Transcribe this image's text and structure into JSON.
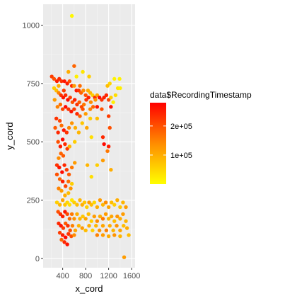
{
  "chart_data": {
    "type": "scatter",
    "title": "",
    "xlabel": "x_cord",
    "ylabel": "y_cord",
    "xlim": [
      60,
      1660
    ],
    "ylim": [
      -40,
      1090
    ],
    "x_ticks": [
      400,
      800,
      1200,
      1600
    ],
    "x_tick_labels": [
      "400",
      "800",
      "1200",
      "1600"
    ],
    "y_ticks": [
      0,
      250,
      500,
      750,
      1000
    ],
    "y_tick_labels": [
      "0",
      "250",
      "500",
      "750",
      "1000"
    ],
    "grid": true,
    "panel_background": "#ebebeb",
    "legend": {
      "title": "data$RecordingTimestamp",
      "position": "right",
      "type": "colorbar",
      "range": [
        0,
        280000
      ],
      "breaks": [
        100000,
        200000
      ],
      "break_labels": [
        "1e+05",
        "2e+05"
      ],
      "low_color": "#ffff00",
      "mid_color": "#ff8c00",
      "high_color": "#ff0000"
    },
    "points_xyc": [
      [
        560,
        1040,
        10000
      ],
      [
        1470,
        5,
        120000
      ],
      [
        210,
        780,
        220000
      ],
      [
        250,
        770,
        200000
      ],
      [
        300,
        760,
        250000
      ],
      [
        340,
        770,
        240000
      ],
      [
        380,
        760,
        230000
      ],
      [
        430,
        760,
        260000
      ],
      [
        480,
        750,
        250000
      ],
      [
        520,
        760,
        200000
      ],
      [
        560,
        740,
        240000
      ],
      [
        600,
        740,
        120000
      ],
      [
        640,
        720,
        260000
      ],
      [
        680,
        720,
        230000
      ],
      [
        720,
        710,
        180000
      ],
      [
        760,
        720,
        140000
      ],
      [
        800,
        700,
        200000
      ],
      [
        840,
        720,
        100000
      ],
      [
        880,
        710,
        90000
      ],
      [
        920,
        700,
        60000
      ],
      [
        960,
        690,
        240000
      ],
      [
        1000,
        700,
        110000
      ],
      [
        1040,
        690,
        270000
      ],
      [
        1080,
        680,
        230000
      ],
      [
        1120,
        690,
        250000
      ],
      [
        1160,
        700,
        240000
      ],
      [
        1200,
        680,
        210000
      ],
      [
        1240,
        690,
        60000
      ],
      [
        1280,
        670,
        20000
      ],
      [
        1320,
        700,
        40000
      ],
      [
        1360,
        730,
        30000
      ],
      [
        1400,
        730,
        20000
      ],
      [
        1300,
        770,
        15000
      ],
      [
        1390,
        770,
        15000
      ],
      [
        1220,
        750,
        50000
      ],
      [
        1180,
        740,
        80000
      ],
      [
        250,
        730,
        60000
      ],
      [
        290,
        720,
        80000
      ],
      [
        330,
        710,
        150000
      ],
      [
        370,
        700,
        230000
      ],
      [
        410,
        690,
        260000
      ],
      [
        450,
        700,
        240000
      ],
      [
        490,
        680,
        270000
      ],
      [
        530,
        690,
        220000
      ],
      [
        570,
        670,
        200000
      ],
      [
        610,
        680,
        250000
      ],
      [
        650,
        660,
        230000
      ],
      [
        690,
        670,
        190000
      ],
      [
        730,
        650,
        210000
      ],
      [
        770,
        660,
        160000
      ],
      [
        810,
        680,
        230000
      ],
      [
        850,
        690,
        250000
      ],
      [
        890,
        670,
        140000
      ],
      [
        930,
        650,
        180000
      ],
      [
        970,
        680,
        130000
      ],
      [
        260,
        680,
        120000
      ],
      [
        310,
        650,
        150000
      ],
      [
        360,
        660,
        170000
      ],
      [
        400,
        640,
        210000
      ],
      [
        450,
        650,
        270000
      ],
      [
        500,
        640,
        230000
      ],
      [
        550,
        630,
        260000
      ],
      [
        600,
        640,
        220000
      ],
      [
        650,
        620,
        240000
      ],
      [
        700,
        610,
        180000
      ],
      [
        750,
        640,
        200000
      ],
      [
        800,
        620,
        120000
      ],
      [
        880,
        640,
        150000
      ],
      [
        500,
        800,
        100000
      ],
      [
        640,
        780,
        20000
      ],
      [
        750,
        800,
        30000
      ],
      [
        860,
        780,
        60000
      ],
      [
        600,
        825,
        180000
      ],
      [
        330,
        740,
        100000
      ],
      [
        420,
        720,
        220000
      ],
      [
        700,
        740,
        170000
      ],
      [
        1000,
        650,
        260000
      ],
      [
        1080,
        640,
        200000
      ],
      [
        1200,
        610,
        220000
      ],
      [
        1240,
        650,
        260000
      ],
      [
        290,
        600,
        230000
      ],
      [
        350,
        590,
        210000
      ],
      [
        270,
        560,
        190000
      ],
      [
        320,
        540,
        240000
      ],
      [
        380,
        570,
        170000
      ],
      [
        420,
        550,
        260000
      ],
      [
        470,
        540,
        230000
      ],
      [
        510,
        560,
        150000
      ],
      [
        560,
        580,
        130000
      ],
      [
        620,
        560,
        100000
      ],
      [
        680,
        540,
        90000
      ],
      [
        740,
        580,
        70000
      ],
      [
        320,
        500,
        200000
      ],
      [
        360,
        480,
        250000
      ],
      [
        400,
        510,
        270000
      ],
      [
        440,
        490,
        240000
      ],
      [
        480,
        470,
        220000
      ],
      [
        370,
        450,
        180000
      ],
      [
        330,
        430,
        140000
      ],
      [
        410,
        440,
        190000
      ],
      [
        520,
        480,
        90000
      ],
      [
        610,
        500,
        60000
      ],
      [
        820,
        560,
        110000
      ],
      [
        880,
        600,
        60000
      ],
      [
        1000,
        600,
        80000
      ],
      [
        1100,
        520,
        240000
      ],
      [
        1120,
        490,
        270000
      ],
      [
        1200,
        480,
        250000
      ],
      [
        1220,
        560,
        200000
      ],
      [
        900,
        520,
        40000
      ],
      [
        300,
        400,
        230000
      ],
      [
        340,
        390,
        260000
      ],
      [
        390,
        370,
        270000
      ],
      [
        430,
        400,
        240000
      ],
      [
        470,
        380,
        220000
      ],
      [
        510,
        360,
        190000
      ],
      [
        560,
        390,
        160000
      ],
      [
        610,
        410,
        120000
      ],
      [
        300,
        360,
        200000
      ],
      [
        350,
        340,
        180000
      ],
      [
        400,
        330,
        250000
      ],
      [
        450,
        310,
        210000
      ],
      [
        500,
        330,
        170000
      ],
      [
        540,
        300,
        130000
      ],
      [
        330,
        300,
        150000
      ],
      [
        380,
        290,
        120000
      ],
      [
        440,
        270,
        100000
      ],
      [
        500,
        280,
        80000
      ],
      [
        560,
        320,
        60000
      ],
      [
        830,
        400,
        90000
      ],
      [
        900,
        350,
        40000
      ],
      [
        1100,
        420,
        120000
      ],
      [
        1180,
        460,
        160000
      ],
      [
        1240,
        380,
        100000
      ],
      [
        1000,
        400,
        60000
      ],
      [
        300,
        240,
        60000
      ],
      [
        350,
        230,
        90000
      ],
      [
        400,
        250,
        110000
      ],
      [
        440,
        230,
        70000
      ],
      [
        480,
        240,
        50000
      ],
      [
        520,
        230,
        40000
      ],
      [
        560,
        250,
        30000
      ],
      [
        600,
        240,
        60000
      ],
      [
        650,
        230,
        80000
      ],
      [
        700,
        250,
        90000
      ],
      [
        740,
        230,
        100000
      ],
      [
        780,
        240,
        70000
      ],
      [
        820,
        220,
        60000
      ],
      [
        860,
        240,
        120000
      ],
      [
        900,
        230,
        80000
      ],
      [
        950,
        240,
        50000
      ],
      [
        1000,
        220,
        100000
      ],
      [
        1050,
        250,
        120000
      ],
      [
        1100,
        230,
        90000
      ],
      [
        1150,
        240,
        140000
      ],
      [
        1200,
        220,
        110000
      ],
      [
        1250,
        240,
        80000
      ],
      [
        1300,
        230,
        60000
      ],
      [
        1350,
        250,
        100000
      ],
      [
        1400,
        220,
        70000
      ],
      [
        1450,
        240,
        90000
      ],
      [
        1500,
        220,
        120000
      ],
      [
        320,
        200,
        200000
      ],
      [
        360,
        190,
        230000
      ],
      [
        400,
        180,
        250000
      ],
      [
        440,
        200,
        260000
      ],
      [
        480,
        190,
        210000
      ],
      [
        520,
        170,
        180000
      ],
      [
        560,
        190,
        160000
      ],
      [
        600,
        170,
        130000
      ],
      [
        650,
        190,
        100000
      ],
      [
        700,
        170,
        90000
      ],
      [
        750,
        180,
        70000
      ],
      [
        800,
        170,
        110000
      ],
      [
        850,
        190,
        80000
      ],
      [
        900,
        160,
        60000
      ],
      [
        950,
        180,
        120000
      ],
      [
        1000,
        160,
        140000
      ],
      [
        1050,
        180,
        100000
      ],
      [
        1100,
        170,
        160000
      ],
      [
        1150,
        190,
        120000
      ],
      [
        1200,
        170,
        90000
      ],
      [
        1250,
        180,
        110000
      ],
      [
        1300,
        160,
        80000
      ],
      [
        1350,
        180,
        130000
      ],
      [
        1400,
        170,
        100000
      ],
      [
        1450,
        190,
        120000
      ],
      [
        1500,
        160,
        90000
      ],
      [
        330,
        150,
        240000
      ],
      [
        370,
        140,
        260000
      ],
      [
        410,
        130,
        220000
      ],
      [
        450,
        150,
        190000
      ],
      [
        490,
        140,
        230000
      ],
      [
        530,
        120,
        200000
      ],
      [
        570,
        140,
        150000
      ],
      [
        620,
        120,
        110000
      ],
      [
        680,
        140,
        90000
      ],
      [
        740,
        130,
        120000
      ],
      [
        800,
        120,
        80000
      ],
      [
        860,
        140,
        100000
      ],
      [
        920,
        120,
        60000
      ],
      [
        980,
        140,
        90000
      ],
      [
        1040,
        120,
        130000
      ],
      [
        1100,
        140,
        110000
      ],
      [
        1160,
        120,
        150000
      ],
      [
        1220,
        140,
        100000
      ],
      [
        1280,
        120,
        90000
      ],
      [
        1340,
        140,
        130000
      ],
      [
        1400,
        120,
        110000
      ],
      [
        1460,
        140,
        80000
      ],
      [
        1520,
        130,
        100000
      ],
      [
        350,
        110,
        220000
      ],
      [
        400,
        100,
        250000
      ],
      [
        450,
        90,
        270000
      ],
      [
        500,
        105,
        230000
      ],
      [
        550,
        95,
        200000
      ],
      [
        430,
        70,
        240000
      ],
      [
        480,
        60,
        260000
      ],
      [
        380,
        80,
        180000
      ],
      [
        600,
        100,
        140000
      ],
      [
        1000,
        100,
        150000
      ],
      [
        1100,
        100,
        120000
      ],
      [
        1200,
        95,
        100000
      ],
      [
        1300,
        100,
        130000
      ],
      [
        1400,
        95,
        90000
      ],
      [
        1550,
        100,
        80000
      ]
    ]
  }
}
